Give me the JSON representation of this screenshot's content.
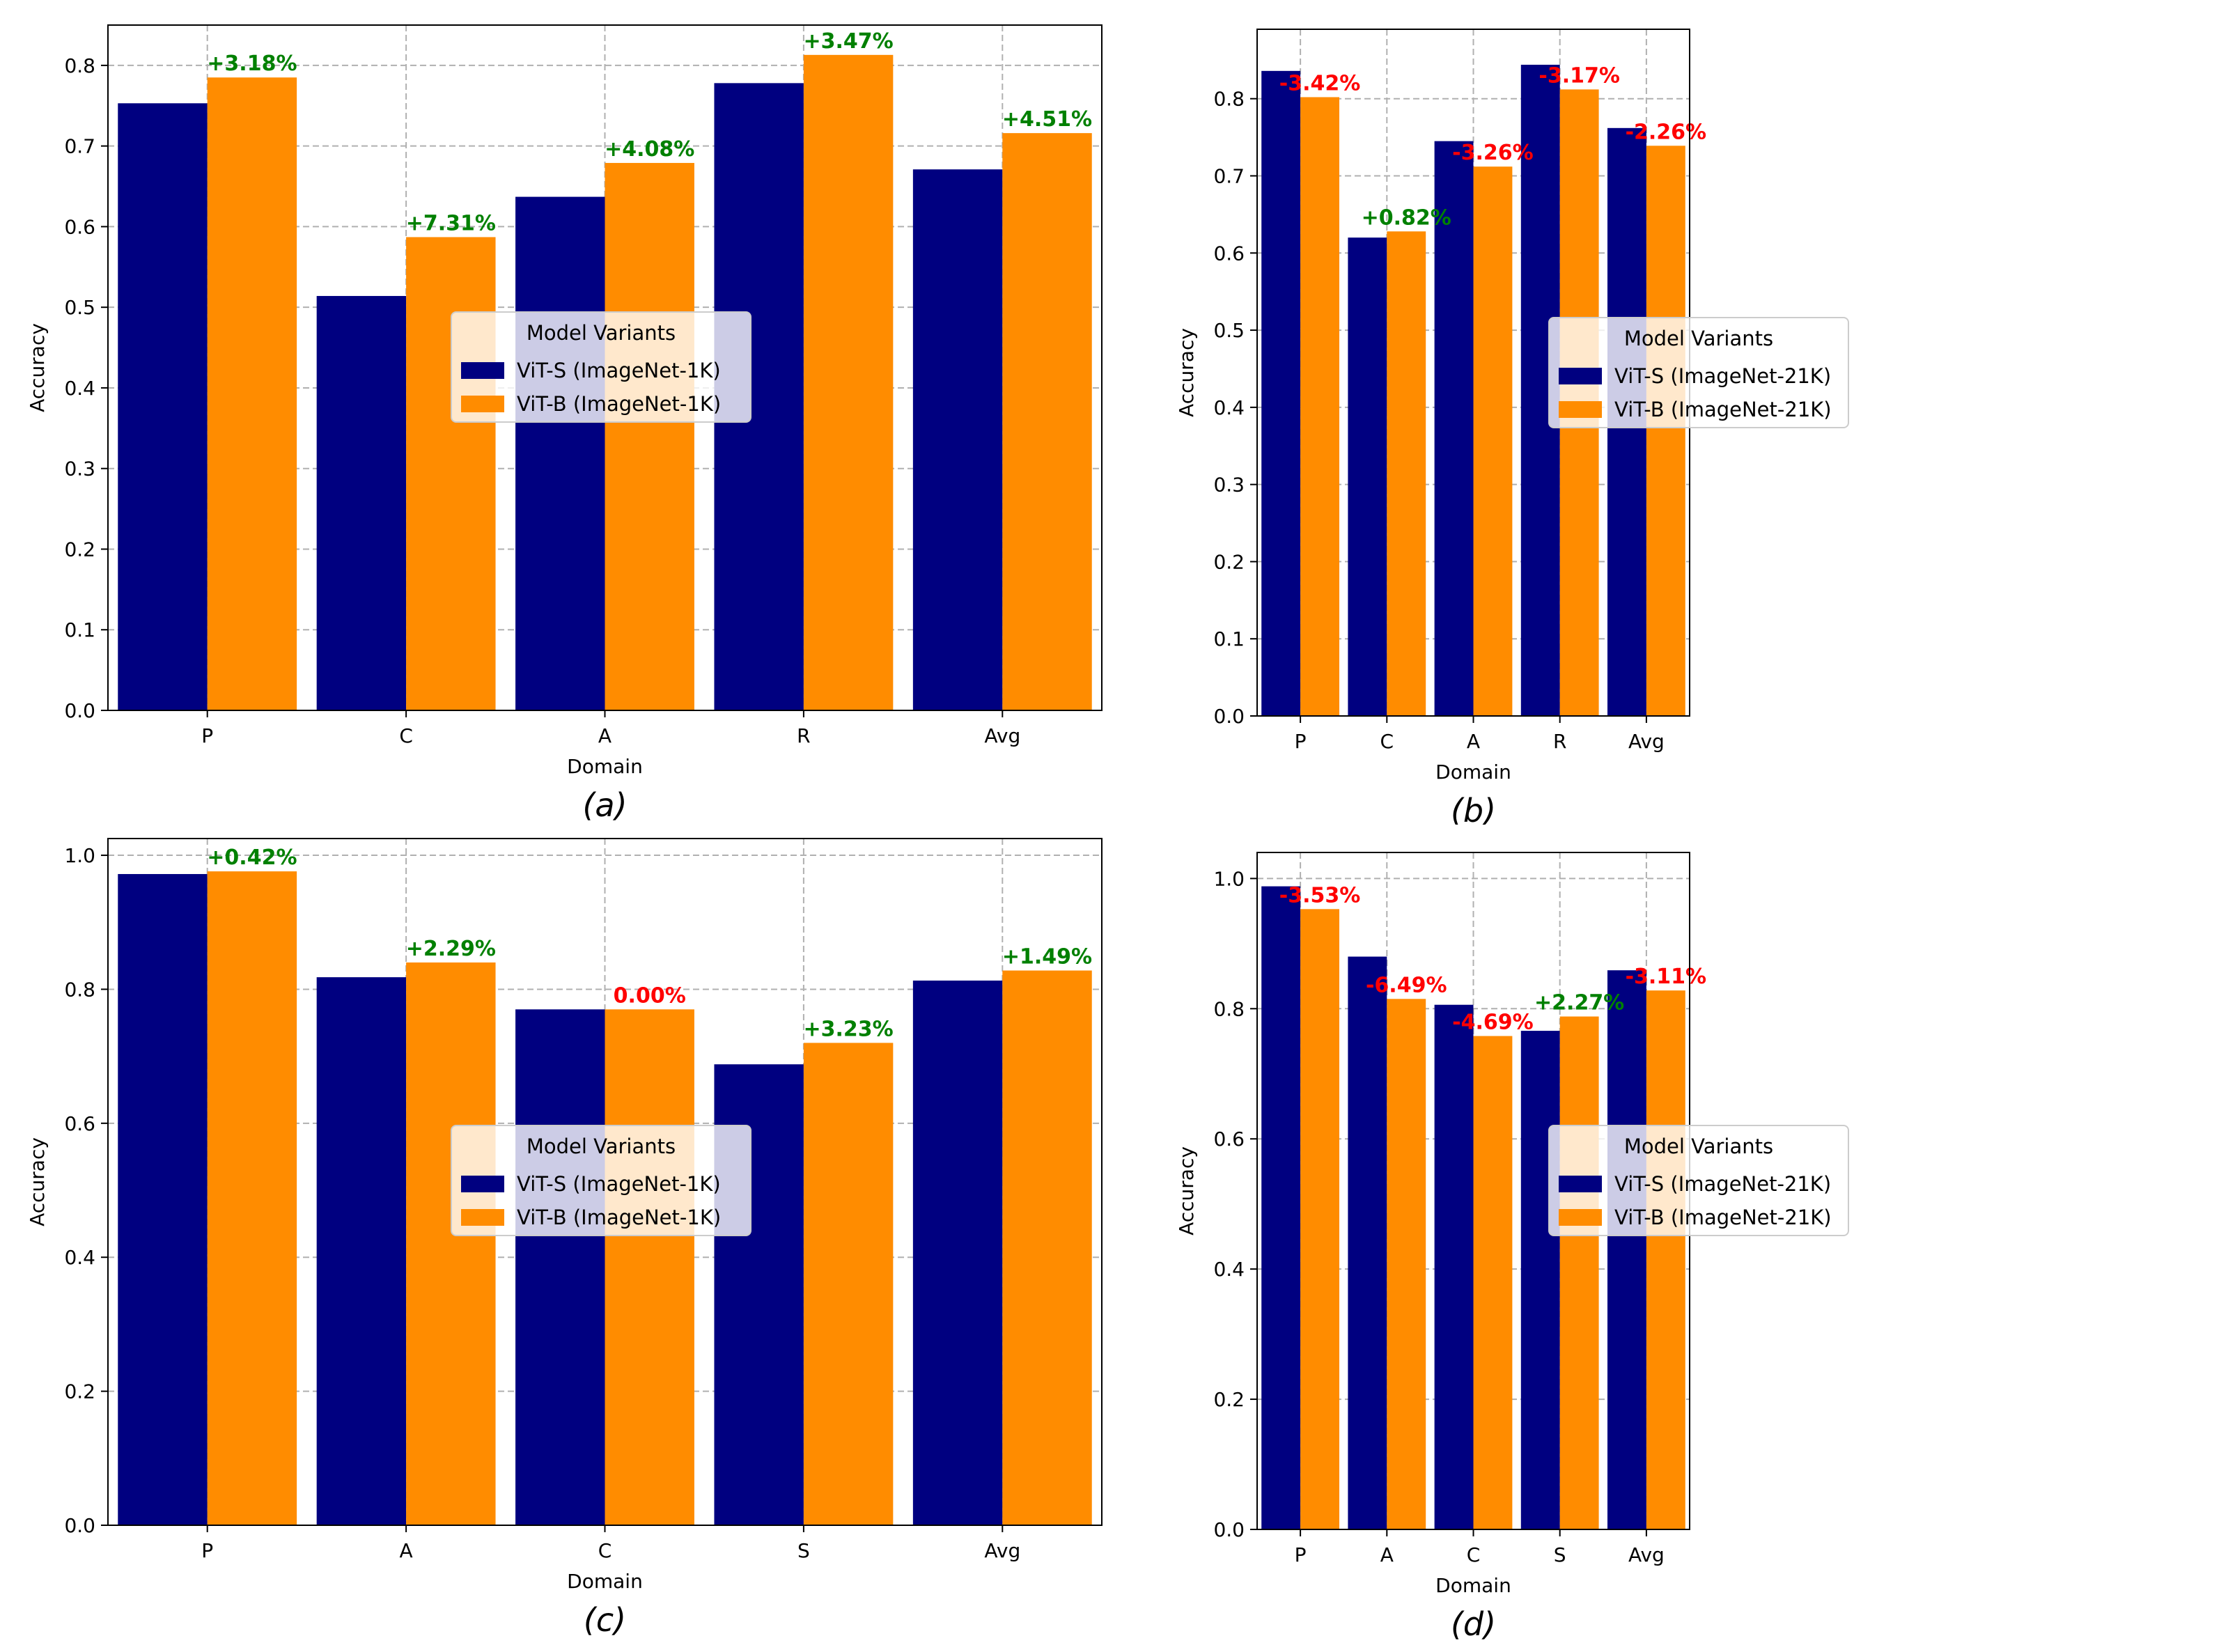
{
  "colors": {
    "series_s": "#000080",
    "series_b": "#FF8C00",
    "positive": "#008000",
    "negative": "#FF0000",
    "grid": "#b0b0b0",
    "axis": "#000000"
  },
  "chart_data": [
    {
      "id": "a",
      "type": "bar",
      "caption": "(a)",
      "xlabel": "Domain",
      "ylabel": "Accuracy",
      "categories": [
        "P",
        "C",
        "A",
        "R",
        "Avg"
      ],
      "ylim": [
        0,
        0.85
      ],
      "yticks": [
        0.0,
        0.1,
        0.2,
        0.3,
        0.4,
        0.5,
        0.6,
        0.7,
        0.8
      ],
      "grid": true,
      "legend": {
        "title": "Model Variants",
        "placement": "center"
      },
      "series": [
        {
          "name": "ViT-S (ImageNet-1K)",
          "color": "#000080",
          "values": [
            0.753,
            0.514,
            0.637,
            0.778,
            0.671
          ]
        },
        {
          "name": "ViT-B (ImageNet-1K)",
          "color": "#FF8C00",
          "values": [
            0.785,
            0.587,
            0.679,
            0.813,
            0.716
          ]
        }
      ],
      "annotations": [
        "+3.18%",
        "+7.31%",
        "+4.08%",
        "+3.47%",
        "+4.51%"
      ]
    },
    {
      "id": "b",
      "type": "bar",
      "caption": "(b)",
      "xlabel": "Domain",
      "ylabel": "Accuracy",
      "categories": [
        "P",
        "C",
        "A",
        "R",
        "Avg"
      ],
      "ylim": [
        0,
        0.89
      ],
      "yticks": [
        0.0,
        0.1,
        0.2,
        0.3,
        0.4,
        0.5,
        0.6,
        0.7,
        0.8
      ],
      "grid": true,
      "legend": {
        "title": "Model Variants",
        "placement": "center"
      },
      "series": [
        {
          "name": "ViT-S (ImageNet-21K)",
          "color": "#000080",
          "values": [
            0.836,
            0.62,
            0.745,
            0.844,
            0.762
          ]
        },
        {
          "name": "ViT-B (ImageNet-21K)",
          "color": "#FF8C00",
          "values": [
            0.802,
            0.628,
            0.712,
            0.812,
            0.739
          ]
        }
      ],
      "annotations": [
        "-3.42%",
        "+0.82%",
        "-3.26%",
        "-3.17%",
        "-2.26%"
      ]
    },
    {
      "id": "c",
      "type": "bar",
      "caption": "(c)",
      "xlabel": "Domain",
      "ylabel": "Accuracy",
      "categories": [
        "P",
        "A",
        "C",
        "S",
        "Avg"
      ],
      "ylim": [
        0,
        1.025
      ],
      "yticks": [
        0.0,
        0.2,
        0.4,
        0.6,
        0.8,
        1.0
      ],
      "grid": true,
      "legend": {
        "title": "Model Variants",
        "placement": "center"
      },
      "series": [
        {
          "name": "ViT-S (ImageNet-1K)",
          "color": "#000080",
          "values": [
            0.972,
            0.818,
            0.77,
            0.688,
            0.813
          ]
        },
        {
          "name": "ViT-B (ImageNet-1K)",
          "color": "#FF8C00",
          "values": [
            0.976,
            0.84,
            0.77,
            0.72,
            0.828
          ]
        }
      ],
      "annotations": [
        "+0.42%",
        "+2.29%",
        "0.00%",
        "+3.23%",
        "+1.49%"
      ]
    },
    {
      "id": "d",
      "type": "bar",
      "caption": "(d)",
      "xlabel": "Domain",
      "ylabel": "Accuracy",
      "categories": [
        "P",
        "A",
        "C",
        "S",
        "Avg"
      ],
      "ylim": [
        0,
        1.04
      ],
      "yticks": [
        0.0,
        0.2,
        0.4,
        0.6,
        0.8,
        1.0
      ],
      "grid": true,
      "legend": {
        "title": "Model Variants",
        "placement": "center"
      },
      "series": [
        {
          "name": "ViT-S (ImageNet-21K)",
          "color": "#000080",
          "values": [
            0.988,
            0.88,
            0.806,
            0.766,
            0.859
          ]
        },
        {
          "name": "ViT-B (ImageNet-21K)",
          "color": "#FF8C00",
          "values": [
            0.953,
            0.815,
            0.758,
            0.788,
            0.828
          ]
        }
      ],
      "annotations": [
        "-3.53%",
        "-6.49%",
        "-4.69%",
        "+2.27%",
        "-3.11%"
      ]
    }
  ]
}
